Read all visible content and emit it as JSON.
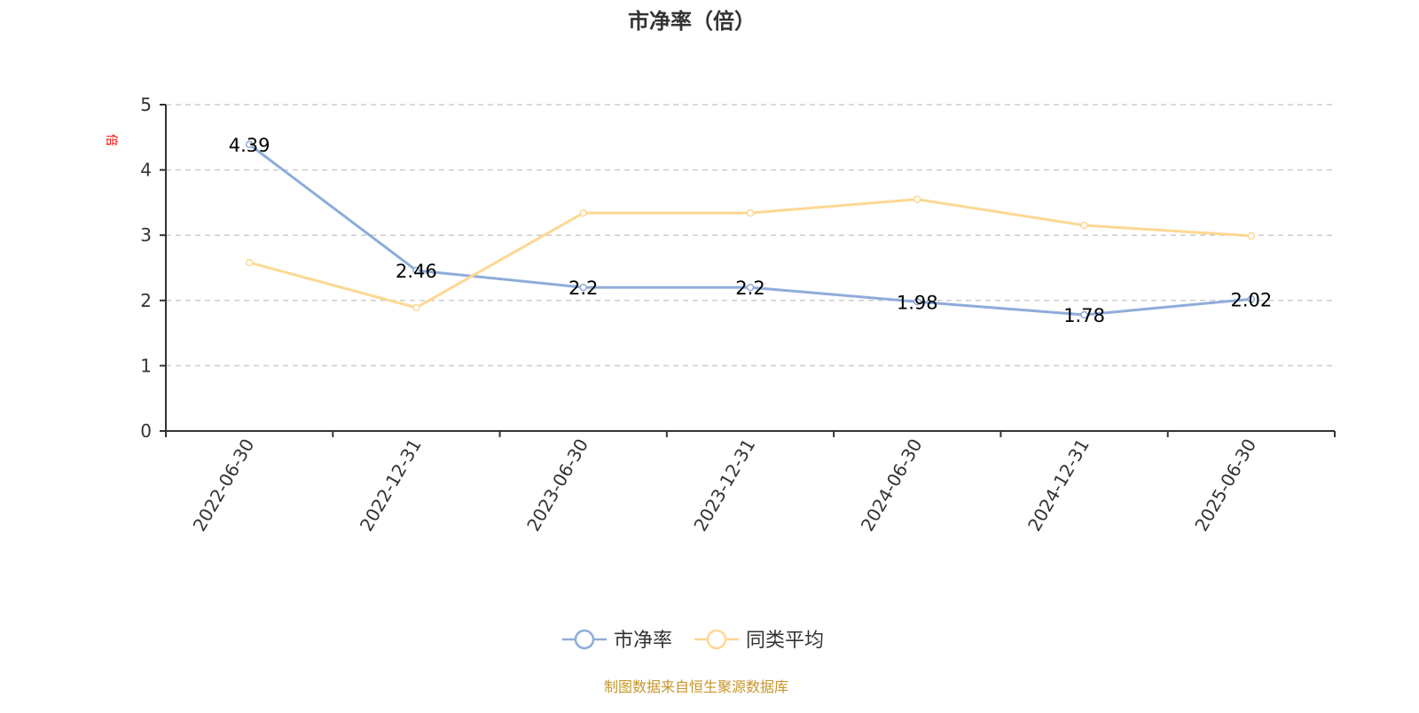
{
  "chart_data": {
    "type": "line",
    "title": "市净率（倍）",
    "ylabel": "倍",
    "xlabel": "",
    "categories": [
      "2022-06-30",
      "2022-12-31",
      "2023-06-30",
      "2023-12-31",
      "2024-06-30",
      "2024-12-31",
      "2025-06-30"
    ],
    "ylim": [
      0,
      5
    ],
    "yticks": [
      0,
      1,
      2,
      3,
      4,
      5
    ],
    "grid": true,
    "legend_placement": "bottom",
    "series": [
      {
        "name": "市净率",
        "color": "#8eacd9",
        "values": [
          4.39,
          2.46,
          2.2,
          2.2,
          1.98,
          1.78,
          2.02
        ],
        "labels": [
          "4.39",
          "2.46",
          "2.2",
          "2.2",
          "1.98",
          "1.78",
          "2.02"
        ]
      },
      {
        "name": "同类平均",
        "color": "#fdd893",
        "values": [
          2.58,
          1.89,
          3.34,
          3.34,
          3.55,
          3.15,
          2.99
        ]
      }
    ],
    "footer": "制图数据来自恒生聚源数据库"
  }
}
